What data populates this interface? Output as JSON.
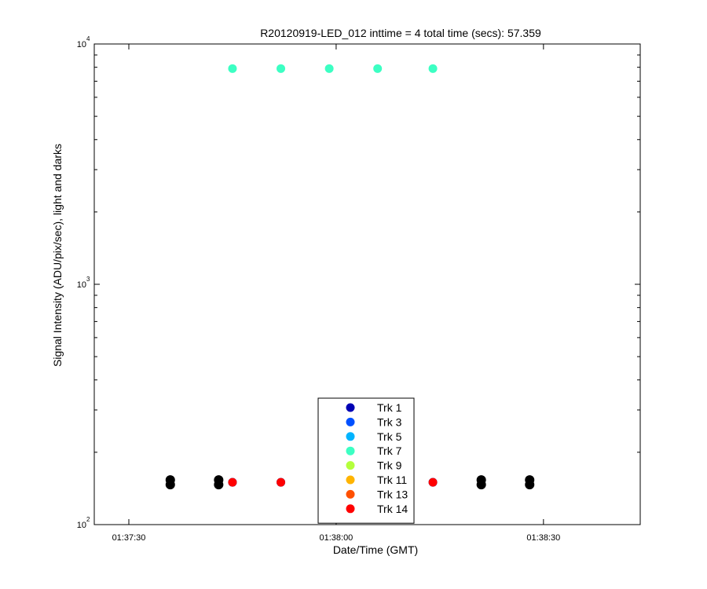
{
  "chart_data": {
    "type": "scatter",
    "title": "R20120919-LED_012 inttime = 4 total time (secs): 57.359",
    "xlabel": "Date/Time (GMT)",
    "ylabel": "Signal Intensity (ADU/pix/sec), light and darks",
    "yscale": "log",
    "ylim": [
      100,
      10000
    ],
    "xlim": [
      "01:37:25",
      "01:38:44"
    ],
    "x_ticks": [
      "01:37:30",
      "01:38:00",
      "01:38:30"
    ],
    "y_ticks": [
      {
        "base": "10",
        "exp": "2",
        "value": 100
      },
      {
        "base": "10",
        "exp": "3",
        "value": 1000
      },
      {
        "base": "10",
        "exp": "4",
        "value": 10000
      }
    ],
    "grid": false,
    "legend_position": "bottom-center",
    "series": [
      {
        "name": "Trk 1",
        "color": "#0000b4",
        "x": [
          "01:37:45",
          "01:37:52",
          "01:38:14"
        ],
        "y": [
          150,
          150,
          150
        ]
      },
      {
        "name": "Trk 3",
        "color": "#0050ff",
        "x": [
          "01:37:45",
          "01:37:52",
          "01:38:14"
        ],
        "y": [
          150,
          150,
          150
        ]
      },
      {
        "name": "Trk 5",
        "color": "#00b4ff",
        "x": [
          "01:37:45",
          "01:37:52",
          "01:38:14"
        ],
        "y": [
          150,
          150,
          150
        ]
      },
      {
        "name": "Trk 7",
        "color": "#3cffc3",
        "x": [
          "01:37:45",
          "01:37:52",
          "01:37:59",
          "01:38:06",
          "01:38:14"
        ],
        "y": [
          7900,
          7900,
          7900,
          7900,
          7900
        ]
      },
      {
        "name": "Trk 9",
        "color": "#b4ff3c",
        "x": [],
        "y": []
      },
      {
        "name": "Trk 11",
        "color": "#ffb400",
        "x": [],
        "y": []
      },
      {
        "name": "Trk 13",
        "color": "#ff5000",
        "x": [],
        "y": []
      },
      {
        "name": "Trk 14",
        "color": "#ff0000",
        "x": [
          "01:37:45",
          "01:37:52",
          "01:38:14"
        ],
        "y": [
          150,
          150,
          150
        ]
      }
    ],
    "darks": {
      "color": "#000000",
      "x": [
        "01:37:36",
        "01:37:43",
        "01:38:21",
        "01:38:28"
      ],
      "y": [
        150,
        150,
        150,
        150
      ]
    }
  }
}
